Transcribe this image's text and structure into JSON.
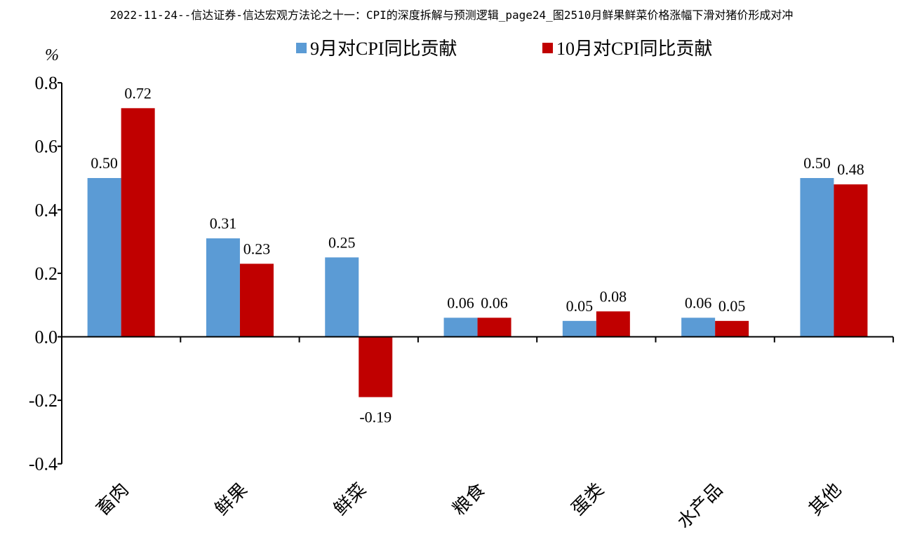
{
  "doc_title": "2022-11-24--信达证券-信达宏观方法论之十一：CPI的深度拆解与预测逻辑_page24_图2510月鲜果鲜菜价格涨幅下滑对猪价形成对冲",
  "chart_data": {
    "type": "bar",
    "title": "",
    "xlabel": "",
    "ylabel": "%",
    "ylim": [
      -0.4,
      0.8
    ],
    "yticks": [
      -0.4,
      -0.2,
      0.0,
      0.2,
      0.4,
      0.6,
      0.8
    ],
    "ytick_labels": [
      "-0.4",
      "-0.2",
      "0.0",
      "0.2",
      "0.4",
      "0.6",
      "0.8"
    ],
    "grid": false,
    "legend_position": "top-center",
    "categories": [
      "畜肉",
      "鲜果",
      "鲜菜",
      "粮食",
      "蛋类",
      "水产品",
      "其他"
    ],
    "series": [
      {
        "name": "9月对CPI同比贡献",
        "color": "#5B9BD5",
        "values": [
          0.5,
          0.31,
          0.25,
          0.06,
          0.05,
          0.06,
          0.5
        ],
        "labels": [
          "0.50",
          "0.31",
          "0.25",
          "0.06",
          "0.05",
          "0.06",
          "0.50"
        ]
      },
      {
        "name": "10月对CPI同比贡献",
        "color": "#C00000",
        "values": [
          0.72,
          0.23,
          -0.19,
          0.06,
          0.08,
          0.05,
          0.48
        ],
        "labels": [
          "0.72",
          "0.23",
          "-0.19",
          "0.06",
          "0.08",
          "0.05",
          "0.48"
        ]
      }
    ]
  }
}
